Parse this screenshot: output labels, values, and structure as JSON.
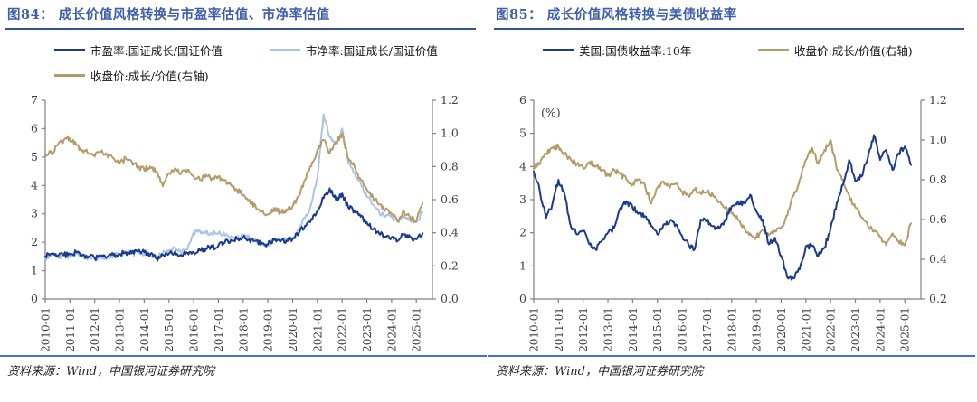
{
  "colors": {
    "navy": "#1a3a8c",
    "light_blue": "#a9c4e6",
    "tan": "#b59b68",
    "title_blue": "#3d5ea9",
    "title_rule": "#2e5496",
    "bottom_rule": "#4472c4",
    "axis": "#808080",
    "tick_text": "#3f3f3f"
  },
  "charts": [
    {
      "title": "图84：  成长价值风格转换与市盈率估值、市净率估值",
      "source": "资料来源：Wind，中国银河证券研究院",
      "legend": [
        {
          "label": "市盈率:国证成长/国证价值",
          "color": "#1a3a8c"
        },
        {
          "label": "市净率:国证成长/国证价值",
          "color": "#a9c4e6"
        },
        {
          "label": "收盘价:成长/价值(右轴)",
          "color": "#b59b68"
        }
      ],
      "chart_data": {
        "type": "line",
        "x_start": 2010.0,
        "x_step": 0.25,
        "x_domain": [
          2010.0,
          2025.65
        ],
        "x_tick_values": [
          2010,
          2011,
          2012,
          2013,
          2014,
          2015,
          2016,
          2017,
          2018,
          2019,
          2020,
          2021,
          2022,
          2023,
          2024,
          2025
        ],
        "x_ticklabels": [
          "2010-01",
          "2011-01",
          "2012-01",
          "2013-01",
          "2014-01",
          "2015-01",
          "2016-01",
          "2017-01",
          "2018-01",
          "2019-01",
          "2020-01",
          "2021-01",
          "2022-01",
          "2023-01",
          "2024-01",
          "2025-01"
        ],
        "left_axis": {
          "min": 0,
          "max": 7,
          "tick_values": [
            0,
            1,
            2,
            3,
            4,
            5,
            6,
            7
          ],
          "tick_labels": [
            "0",
            "1",
            "2",
            "3",
            "4",
            "5",
            "6",
            "7"
          ]
        },
        "right_axis": {
          "min": 0.0,
          "max": 1.2,
          "tick_values": [
            0.0,
            0.2,
            0.4,
            0.6,
            0.8,
            1.0,
            1.2
          ],
          "tick_labels": [
            "0.0",
            "0.2",
            "0.4",
            "0.6",
            "0.8",
            "1.0",
            "1.2"
          ]
        },
        "series": [
          {
            "name": "市净率:国证成长/国证价值",
            "axis": "left",
            "color": "#a9c4e6",
            "values": [
              1.46,
              1.55,
              1.48,
              1.5,
              1.54,
              1.62,
              1.52,
              1.46,
              1.4,
              1.5,
              1.44,
              1.52,
              1.56,
              1.64,
              1.6,
              1.66,
              1.62,
              1.55,
              1.45,
              1.6,
              1.68,
              1.8,
              1.62,
              1.75,
              2.35,
              2.4,
              2.32,
              2.28,
              2.32,
              2.26,
              2.2,
              2.15,
              2.22,
              2.15,
              2.08,
              1.98,
              1.9,
              2.12,
              2.06,
              2.1,
              2.16,
              2.42,
              2.85,
              3.35,
              4.25,
              6.5,
              5.7,
              5.45,
              6.0,
              4.8,
              4.45,
              4.1,
              3.6,
              3.3,
              3.05,
              2.9,
              2.88,
              2.7,
              2.92,
              2.78,
              2.7,
              3.05
            ]
          },
          {
            "name": "收盘价:成长/价值(右轴)",
            "axis": "right",
            "color": "#b59b68",
            "values": [
              0.87,
              0.88,
              0.93,
              0.96,
              0.97,
              0.93,
              0.9,
              0.88,
              0.86,
              0.89,
              0.87,
              0.85,
              0.82,
              0.85,
              0.83,
              0.8,
              0.78,
              0.8,
              0.77,
              0.68,
              0.76,
              0.79,
              0.76,
              0.78,
              0.74,
              0.72,
              0.75,
              0.73,
              0.74,
              0.72,
              0.69,
              0.66,
              0.63,
              0.6,
              0.56,
              0.53,
              0.51,
              0.55,
              0.52,
              0.54,
              0.56,
              0.62,
              0.72,
              0.8,
              0.9,
              0.96,
              0.88,
              0.95,
              1.0,
              0.85,
              0.8,
              0.72,
              0.66,
              0.61,
              0.57,
              0.54,
              0.51,
              0.47,
              0.53,
              0.49,
              0.47,
              0.58
            ]
          },
          {
            "name": "市盈率:国证成长/国证价值",
            "axis": "left",
            "color": "#1a3a8c",
            "values": [
              1.5,
              1.6,
              1.52,
              1.55,
              1.58,
              1.65,
              1.55,
              1.5,
              1.45,
              1.52,
              1.48,
              1.55,
              1.58,
              1.65,
              1.62,
              1.68,
              1.65,
              1.58,
              1.42,
              1.55,
              1.6,
              1.68,
              1.55,
              1.62,
              1.65,
              1.72,
              1.78,
              1.82,
              1.88,
              1.98,
              2.08,
              2.12,
              2.18,
              2.1,
              2.05,
              1.98,
              1.92,
              2.08,
              2.02,
              2.06,
              2.12,
              2.32,
              2.58,
              2.82,
              3.12,
              3.55,
              3.9,
              3.5,
              3.72,
              3.22,
              3.1,
              2.9,
              2.7,
              2.45,
              2.3,
              2.2,
              2.18,
              2.05,
              2.28,
              2.18,
              2.1,
              2.32
            ]
          }
        ]
      }
    },
    {
      "title": "图85：  成长价值风格转换与美债收益率",
      "source": "资料来源：Wind，中国银河证券研究院",
      "unit_label": "(%)",
      "legend": [
        {
          "label": "美国:国债收益率:10年",
          "color": "#1a3a8c"
        },
        {
          "label": "收盘价:成长/价值(右轴)",
          "color": "#b59b68"
        }
      ],
      "chart_data": {
        "type": "line",
        "x_start": 2010.0,
        "x_step": 0.25,
        "x_domain": [
          2010.0,
          2025.65
        ],
        "x_tick_values": [
          2010,
          2011,
          2012,
          2013,
          2014,
          2015,
          2016,
          2017,
          2018,
          2019,
          2020,
          2021,
          2022,
          2023,
          2024,
          2025
        ],
        "x_ticklabels": [
          "2010-01",
          "2011-01",
          "2012-01",
          "2013-01",
          "2014-01",
          "2015-01",
          "2016-01",
          "2017-01",
          "2018-01",
          "2019-01",
          "2020-01",
          "2021-01",
          "2022-01",
          "2023-01",
          "2024-01",
          "2025-01"
        ],
        "left_axis": {
          "min": 0,
          "max": 6,
          "tick_values": [
            0,
            1,
            2,
            3,
            4,
            5,
            6
          ],
          "tick_labels": [
            "0",
            "1",
            "2",
            "3",
            "4",
            "5",
            "6"
          ]
        },
        "right_axis": {
          "min": 0.2,
          "max": 1.2,
          "tick_values": [
            0.2,
            0.4,
            0.6,
            0.8,
            1.0,
            1.2
          ],
          "tick_labels": [
            "0.2",
            "0.4",
            "0.6",
            "0.8",
            "1.0",
            "1.2"
          ]
        },
        "series": [
          {
            "name": "收盘价:成长/价值(右轴)",
            "axis": "right",
            "color": "#b59b68",
            "values": [
              0.87,
              0.88,
              0.93,
              0.96,
              0.97,
              0.93,
              0.9,
              0.88,
              0.86,
              0.89,
              0.87,
              0.85,
              0.82,
              0.85,
              0.83,
              0.8,
              0.78,
              0.8,
              0.77,
              0.68,
              0.76,
              0.79,
              0.76,
              0.78,
              0.74,
              0.72,
              0.75,
              0.73,
              0.74,
              0.72,
              0.69,
              0.66,
              0.63,
              0.6,
              0.56,
              0.53,
              0.51,
              0.55,
              0.52,
              0.54,
              0.56,
              0.62,
              0.72,
              0.8,
              0.9,
              0.96,
              0.88,
              0.95,
              1.0,
              0.85,
              0.8,
              0.72,
              0.66,
              0.61,
              0.57,
              0.54,
              0.51,
              0.47,
              0.53,
              0.49,
              0.47,
              0.58
            ]
          },
          {
            "name": "美国:国债收益率:10年",
            "axis": "left",
            "color": "#1a3a8c",
            "values": [
              3.85,
              3.25,
              2.45,
              2.85,
              3.6,
              3.15,
              2.2,
              1.95,
              2.05,
              1.65,
              1.5,
              1.75,
              2.0,
              2.15,
              2.75,
              2.95,
              2.75,
              2.6,
              2.5,
              2.2,
              1.95,
              2.25,
              2.35,
              2.25,
              1.9,
              1.65,
              1.5,
              2.4,
              2.4,
              2.2,
              2.15,
              2.4,
              2.8,
              2.95,
              2.9,
              3.15,
              2.65,
              2.4,
              1.65,
              1.85,
              1.3,
              0.65,
              0.62,
              0.9,
              1.6,
              1.6,
              1.3,
              1.55,
              2.15,
              2.9,
              3.45,
              4.2,
              3.55,
              3.7,
              4.25,
              4.95,
              4.2,
              4.5,
              3.9,
              4.4,
              4.6,
              4.05
            ]
          }
        ]
      }
    }
  ]
}
